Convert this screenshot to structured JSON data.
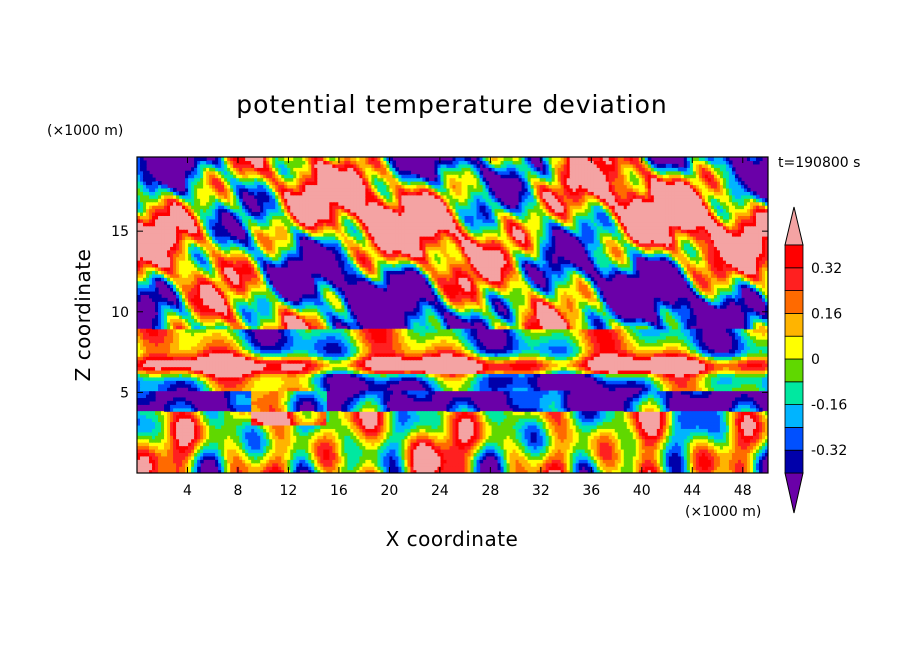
{
  "chart_data": {
    "type": "heatmap",
    "title": "potential temperature deviation",
    "xlabel": "X coordinate",
    "ylabel": "Z coordinate",
    "x_unit": "(×1000 m)",
    "y_unit": "(×1000 m)",
    "time_label": "t=190800 s",
    "xlim": [
      0,
      50
    ],
    "ylim": [
      0,
      19.6
    ],
    "x_ticks": [
      4,
      8,
      12,
      16,
      20,
      24,
      28,
      32,
      36,
      40,
      44,
      48
    ],
    "y_ticks": [
      5,
      10,
      15
    ],
    "colorbar": {
      "levels": [
        -0.4,
        -0.32,
        -0.24,
        -0.16,
        -0.08,
        0,
        0.08,
        0.16,
        0.24,
        0.32,
        0.4
      ],
      "tick_labels": [
        "-0.32",
        "-0.16",
        "0",
        "0.16",
        "0.32"
      ],
      "tick_values": [
        -0.32,
        -0.16,
        0,
        0.16,
        0.32
      ],
      "colors": [
        "#6a00a8",
        "#0000aa",
        "#0050ff",
        "#00b4ff",
        "#00e8a0",
        "#60d800",
        "#ffff00",
        "#ffb400",
        "#ff6a00",
        "#ff2020",
        "#ff0000",
        "#f4a3a3"
      ],
      "extend": "both"
    }
  }
}
